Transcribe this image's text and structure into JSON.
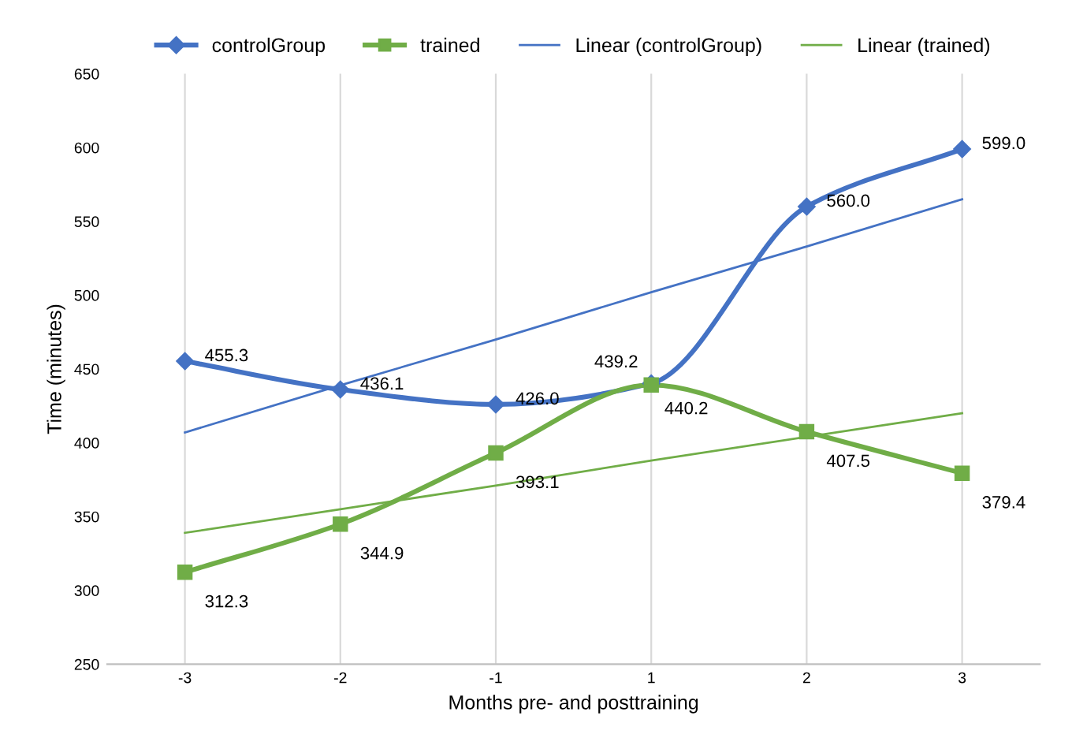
{
  "chart_data": {
    "type": "line",
    "xlabel": "Months pre- and posttraining",
    "ylabel": "Time (minutes)",
    "categories": [
      "-3",
      "-2",
      "-1",
      "1",
      "2",
      "3"
    ],
    "ylim": [
      250,
      650
    ],
    "yticks": [
      250,
      300,
      350,
      400,
      450,
      500,
      550,
      600,
      650
    ],
    "grid": "x",
    "legend": "top",
    "series": [
      {
        "name": "controlGroup",
        "color": "#4472c4",
        "marker": "diamond",
        "value_labels": [
          "455.3",
          "436.1",
          "426.0",
          "440.2",
          "560.0",
          "599.0"
        ],
        "values": [
          455.3,
          436.1,
          426.0,
          440.2,
          560.0,
          599.0
        ]
      },
      {
        "name": "trained",
        "color": "#70ad47",
        "marker": "square",
        "value_labels": [
          "312.3",
          "344.9",
          "393.1",
          "439.2",
          "407.5",
          "379.4"
        ],
        "values": [
          312.3,
          344.9,
          393.1,
          439.2,
          407.5,
          379.4
        ]
      },
      {
        "name": "Linear (controlGroup)",
        "color": "#4472c4",
        "marker": "none",
        "values": [
          407,
          439,
          470,
          502,
          533,
          565
        ]
      },
      {
        "name": "Linear (trained)",
        "color": "#70ad47",
        "marker": "none",
        "values": [
          339,
          355,
          371,
          388,
          404,
          420
        ]
      }
    ]
  }
}
